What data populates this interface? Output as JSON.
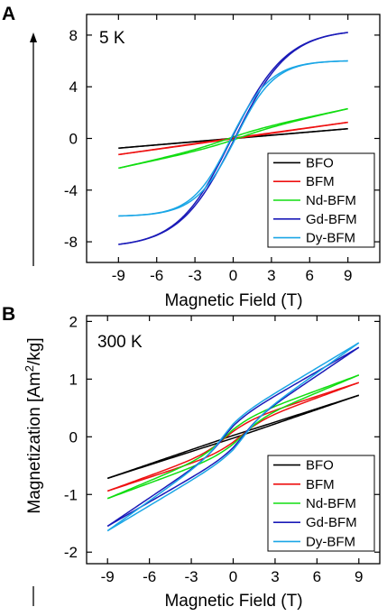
{
  "figure": {
    "ylabel": {
      "text": "Magnetization [Am",
      "sup": "2",
      "unit_end": "/kg]"
    }
  },
  "chart_data": [
    {
      "panel": "A",
      "type": "line",
      "annotation": "5 K",
      "xlabel": "Magnetic Field (T)",
      "xlim": [
        -11.5,
        11.5
      ],
      "ylim": [
        -9.6,
        9.6
      ],
      "xticks": [
        -9,
        -6,
        -3,
        0,
        3,
        6,
        9
      ],
      "yticks": [
        -8,
        -4,
        0,
        4,
        8
      ],
      "legend_position": "bottom-right",
      "series": [
        {
          "name": "BFO",
          "color": "#000000",
          "shape": "linear",
          "ymax": 0.75,
          "coercive": 0.15
        },
        {
          "name": "BFM",
          "color": "#ee1111",
          "shape": "linear",
          "ymax": 1.25,
          "coercive": 0.2
        },
        {
          "name": "Nd-BFM",
          "color": "#11dd11",
          "shape": "soft",
          "ymax": 2.3,
          "coercive": 0.35
        },
        {
          "name": "Gd-BFM",
          "color": "#1a1ab8",
          "shape": "brillouin",
          "ymax": 8.2,
          "coercive": 0.12
        },
        {
          "name": "Dy-BFM",
          "color": "#1aa6e6",
          "shape": "brillouin-dy",
          "ymax": 6.0,
          "coercive": 0.18
        }
      ]
    },
    {
      "panel": "B",
      "type": "line",
      "annotation": "300 K",
      "xlabel": "Magnetic Field (T)",
      "xlim": [
        -10.5,
        10.5
      ],
      "ylim": [
        -2.2,
        2.1
      ],
      "xticks": [
        -9,
        -6,
        -3,
        0,
        3,
        6,
        9
      ],
      "yticks": [
        -2,
        -1,
        0,
        1,
        2
      ],
      "legend_position": "bottom-right",
      "series": [
        {
          "name": "BFO",
          "color": "#000000",
          "shape": "linear",
          "ymax": 0.72,
          "coercive": 0.3
        },
        {
          "name": "BFM",
          "color": "#ee1111",
          "shape": "soft300",
          "ymax": 0.94,
          "coercive": 0.5
        },
        {
          "name": "Nd-BFM",
          "color": "#11dd11",
          "shape": "soft300",
          "ymax": 1.07,
          "coercive": 0.6
        },
        {
          "name": "Gd-BFM",
          "color": "#1a1ab8",
          "shape": "linear-kink",
          "ymax": 1.55,
          "coercive": 0.7
        },
        {
          "name": "Dy-BFM",
          "color": "#1aa6e6",
          "shape": "linear-kink",
          "ymax": 1.63,
          "coercive": 0.8
        }
      ]
    }
  ]
}
